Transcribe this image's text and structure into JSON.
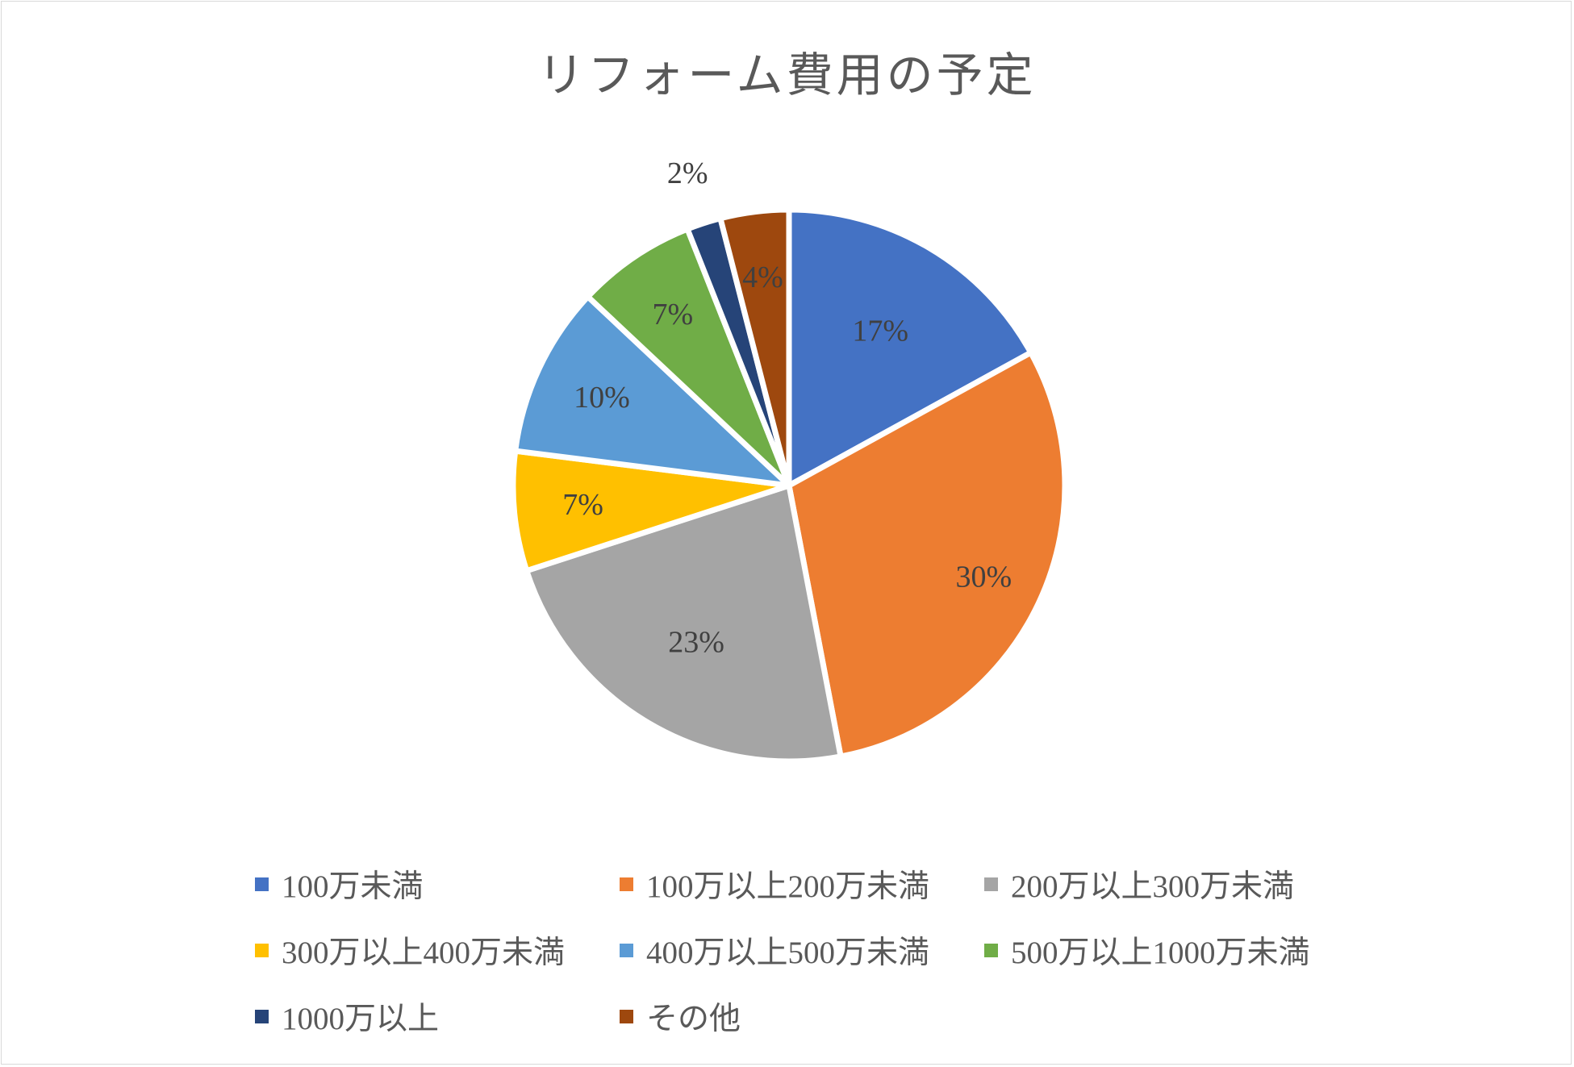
{
  "chart_data": {
    "type": "pie",
    "title": "リフォーム費用の予定",
    "categories": [
      "100万未満",
      "100万以上200万未満",
      "200万以上300万未満",
      "300万以上400万未満",
      "400万以上500万未満",
      "500万以上1000万未満",
      "1000万以上",
      "その他"
    ],
    "values": [
      17,
      30,
      23,
      7,
      10,
      7,
      2,
      4
    ],
    "labels": [
      "17%",
      "30%",
      "23%",
      "7%",
      "10%",
      "7%",
      "2%",
      "4%"
    ],
    "colors": [
      "#4472c4",
      "#ed7d31",
      "#a5a5a5",
      "#ffc000",
      "#5b9bd5",
      "#70ad47",
      "#264478",
      "#9e480e"
    ],
    "legend_position": "bottom"
  }
}
